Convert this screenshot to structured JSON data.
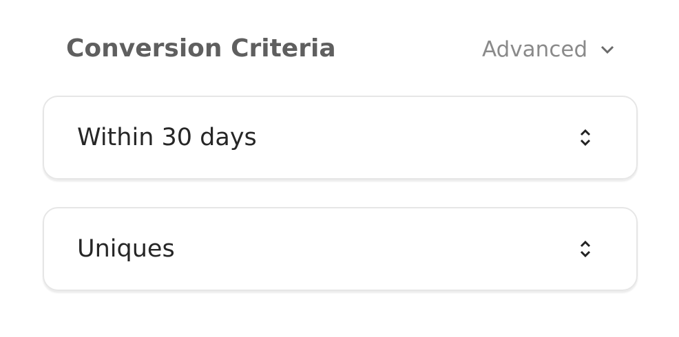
{
  "header": {
    "title": "Conversion Criteria",
    "advanced_label": "Advanced"
  },
  "selects": [
    {
      "value": "Within 30 days"
    },
    {
      "value": "Uniques"
    }
  ]
}
